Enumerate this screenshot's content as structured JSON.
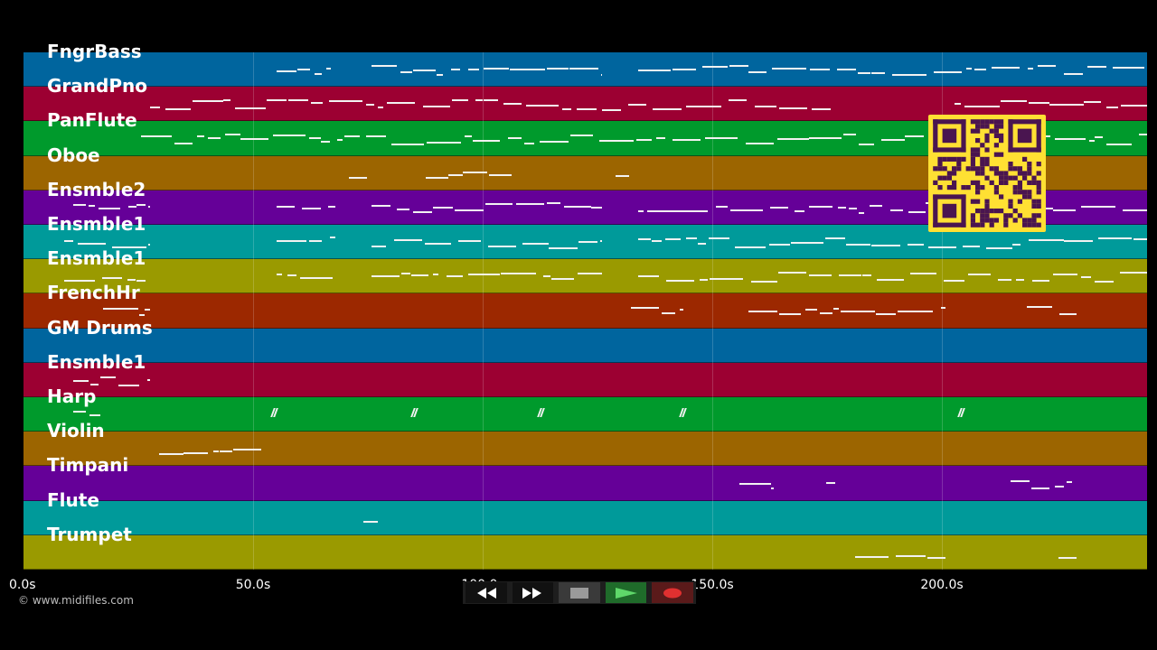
{
  "tracks": [
    {
      "name": "FngrBass",
      "color": "#00659e"
    },
    {
      "name": "GrandPno",
      "color": "#9c0032"
    },
    {
      "name": "PanFlute",
      "color": "#009a2c"
    },
    {
      "name": "Oboe",
      "color": "#9c6500"
    },
    {
      "name": "Ensmble2",
      "color": "#650098"
    },
    {
      "name": "Ensmble1",
      "color": "#009a9a"
    },
    {
      "name": "Ensmble1",
      "color": "#9a9a00"
    },
    {
      "name": "FrenchHr",
      "color": "#9c2800"
    },
    {
      "name": "GM Drums",
      "color": "#00659e"
    },
    {
      "name": "Ensmble1",
      "color": "#9c0032"
    },
    {
      "name": "Harp",
      "color": "#009a2c"
    },
    {
      "name": "Violin",
      "color": "#9c6500"
    },
    {
      "name": "Timpani",
      "color": "#650098"
    },
    {
      "name": "Flute",
      "color": "#009a9a"
    },
    {
      "name": "Trumpet",
      "color": "#9a9a00"
    }
  ],
  "timeline": {
    "ticks": [
      "0.0s",
      "50.0s",
      "100.0s",
      "150.0s",
      "200.0s"
    ],
    "tick_seconds": [
      0,
      50,
      100,
      150,
      200
    ],
    "max_seconds": 245
  },
  "copyright": "© www.midifiles.com",
  "transport": {
    "rewind_icon": "rewind-icon",
    "forward_icon": "fast-forward-icon",
    "stop_icon": "stop-icon",
    "play_icon": "play-icon",
    "record_icon": "record-icon"
  },
  "qr": {
    "color": "#ffe033",
    "dark": "#4a1550"
  }
}
